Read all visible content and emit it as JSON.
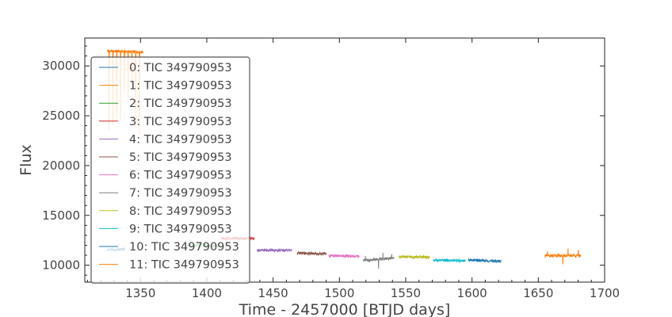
{
  "chart_data": {
    "type": "line",
    "xlabel": "Time - 2457000 [BTJD days]",
    "ylabel": "Flux",
    "xlim": [
      1308,
      1700
    ],
    "ylim": [
      8300,
      32800
    ],
    "xticks": [
      1350,
      1400,
      1450,
      1500,
      1550,
      1600,
      1650,
      1700
    ],
    "yticks": [
      10000,
      15000,
      20000,
      25000,
      30000
    ],
    "grid": false,
    "legend_position": "left",
    "series": [
      {
        "name": "0: TIC 349790953",
        "color": "#1f77b4",
        "x": [
          1325,
          1338
        ],
        "y": [
          11550,
          11600
        ]
      },
      {
        "name": "1: TIC 349790953",
        "color": "#ff7f0e",
        "x": [
          1325,
          1352
        ],
        "y": [
          31500,
          31400
        ]
      },
      {
        "name": "2: TIC 349790953",
        "color": "#2ca02c",
        "x": [
          1385,
          1409
        ],
        "y": [
          12000,
          11950
        ]
      },
      {
        "name": "3: TIC 349790953",
        "color": "#d62728",
        "x": [
          1411,
          1436
        ],
        "y": [
          12700,
          12650
        ]
      },
      {
        "name": "4: TIC 349790953",
        "color": "#9467bd",
        "x": [
          1438,
          1464
        ],
        "y": [
          11500,
          11500
        ]
      },
      {
        "name": "5: TIC 349790953",
        "color": "#8c564b",
        "x": [
          1468,
          1490
        ],
        "y": [
          11200,
          11150
        ]
      },
      {
        "name": "6: TIC 349790953",
        "color": "#e377c2",
        "x": [
          1492,
          1515
        ],
        "y": [
          10950,
          10900
        ]
      },
      {
        "name": "7: TIC 349790953",
        "color": "#7f7f7f",
        "x": [
          1518,
          1541
        ],
        "y": [
          10500,
          10700
        ]
      },
      {
        "name": "8: TIC 349790953",
        "color": "#bcbd22",
        "x": [
          1545,
          1568
        ],
        "y": [
          10850,
          10800
        ]
      },
      {
        "name": "9: TIC 349790953",
        "color": "#17becf",
        "x": [
          1571,
          1595
        ],
        "y": [
          10500,
          10450
        ]
      },
      {
        "name": "10: TIC 349790953",
        "color": "#1f77b4",
        "x": [
          1597,
          1622
        ],
        "y": [
          10500,
          10400
        ]
      },
      {
        "name": "11: TIC 349790953",
        "color": "#ff7f0e",
        "x": [
          1655,
          1682
        ],
        "y": [
          10950,
          10950
        ]
      }
    ]
  }
}
